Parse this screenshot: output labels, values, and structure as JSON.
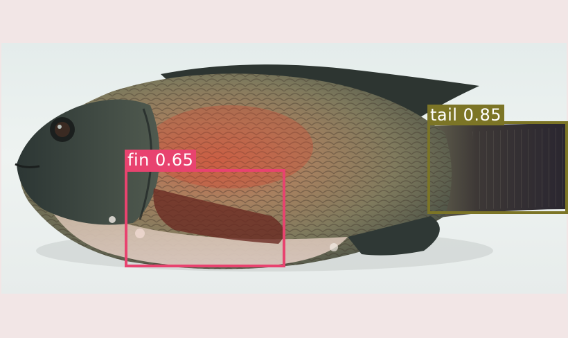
{
  "detections": [
    {
      "class_name": "fin",
      "score": "0.65",
      "label": "fin 0.65",
      "color": "#e8436f"
    },
    {
      "class_name": "tail",
      "score": "0.85",
      "label": "tail 0.85",
      "color": "#7c7526"
    }
  ],
  "colors": {
    "letterbox": "#f2e6e6",
    "background": "#e8eeec",
    "fish_dark": "#2b3431",
    "fish_scales": "#9a8a6e",
    "fish_red": "#b3453a"
  }
}
